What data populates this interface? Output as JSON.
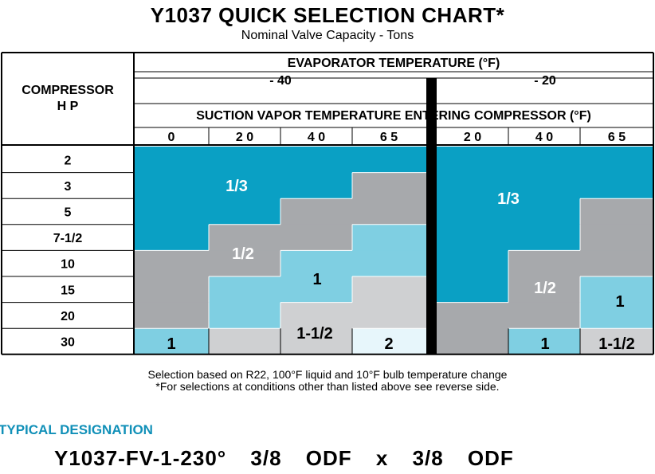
{
  "title": "Y1037 QUICK SELECTION CHART*",
  "subtitle": "Nominal Valve Capacity - Tons",
  "table": {
    "compressor_header_line1": "COMPRESSOR",
    "compressor_header_line2": "H P",
    "evaporator_header": "EVAPORATOR TEMPERATURE (°F)",
    "evap_groups": [
      "- 40",
      "- 20"
    ],
    "suction_header": "SUCTION VAPOR TEMPERATURE ENTERING COMPRESSOR (°F)",
    "suction_columns": [
      "0",
      "2 0",
      "4 0",
      "6 5",
      "2 0",
      "4 0",
      "6 5"
    ],
    "compressor_hp": [
      "2",
      "3",
      "5",
      "7-1/2",
      "10",
      "15",
      "20",
      "30"
    ],
    "capacity_grid": [
      [
        "1/3",
        "1/3",
        "1/3",
        "1/3",
        "1/3",
        "1/3",
        "1/3"
      ],
      [
        "1/3",
        "1/3",
        "1/3",
        "1/2",
        "1/3",
        "1/3",
        "1/3"
      ],
      [
        "1/3",
        "1/3",
        "1/2",
        "1/2",
        "1/3",
        "1/3",
        "1/2"
      ],
      [
        "1/3",
        "1/2",
        "1/2",
        "1",
        "1/3",
        "1/3",
        "1/2"
      ],
      [
        "1/2",
        "1/2",
        "1",
        "1",
        "1/3",
        "1/2",
        "1/2"
      ],
      [
        "1/2",
        "1",
        "1",
        "1-1/2",
        "1/3",
        "1/2",
        "1"
      ],
      [
        "1/2",
        "1",
        "1-1/2",
        "1-1/2",
        "1/2",
        "1/2",
        "1"
      ],
      [
        "1",
        "1-1/2",
        "1-1/2",
        "2",
        "1/2",
        "1",
        "1-1/2"
      ]
    ],
    "capacity_colors": {
      "1/3": "#0aa0c4",
      "1/2": "#a7a9ac",
      "1": "#7fcfe2",
      "1-1/2": "#cfd0d2",
      "2": "#e7f6fb"
    },
    "region_labels": [
      "1/3",
      "1/2",
      "1",
      "1-1/2",
      "2",
      "1",
      "1/3",
      "1/2",
      "1",
      "1",
      "1-1/2"
    ]
  },
  "notes": {
    "line1": "Selection based on R22, 100°F liquid and 10°F bulb temperature change",
    "line2": "*For selections at conditions other than listed above see reverse side."
  },
  "typical_label": "TYPICAL DESIGNATION",
  "designation": "Y1037-FV-1-230°   3/8 ODF x 3/8 ODF"
}
